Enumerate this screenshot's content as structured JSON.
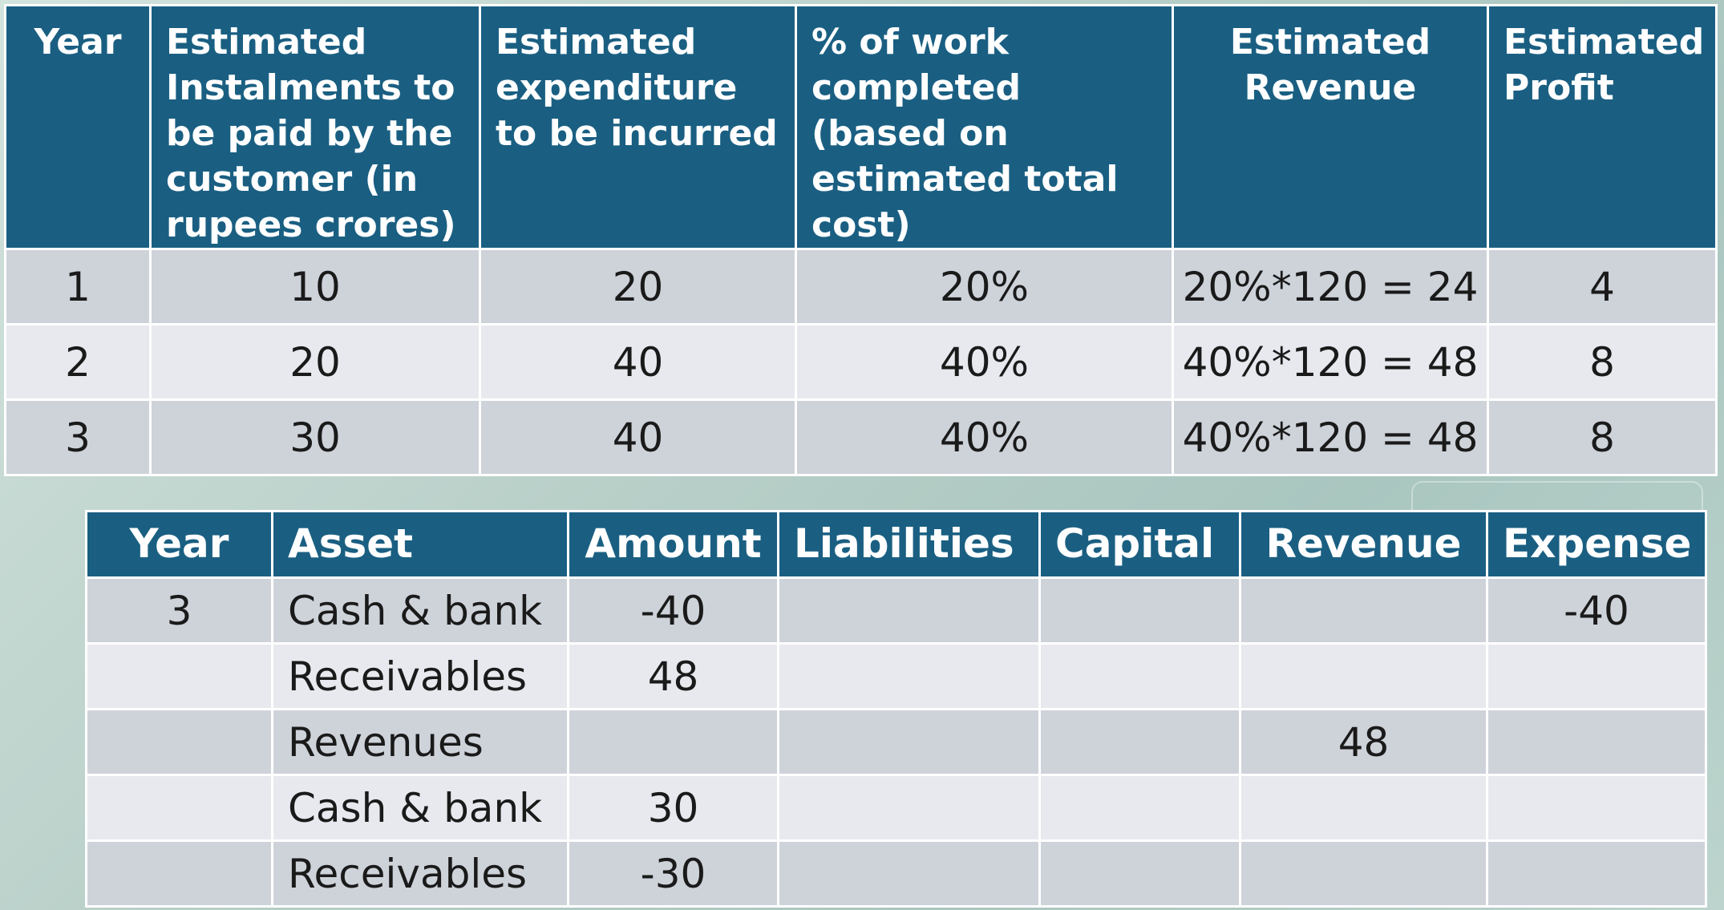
{
  "top_table": {
    "headers": [
      "Year",
      "Estimated Instalments to be  paid by the customer (in rupees crores)",
      "Estimated expenditure to be incurred",
      "% of work completed (based on estimated total cost)",
      "Estimated Revenue",
      "Estimated Profit"
    ],
    "rows": [
      [
        "1",
        "10",
        "20",
        "20%",
        "20%*120 = 24",
        "4"
      ],
      [
        "2",
        "20",
        "40",
        "40%",
        "40%*120 = 48",
        "8"
      ],
      [
        "3",
        "30",
        "40",
        "40%",
        "40%*120 = 48",
        "8"
      ]
    ]
  },
  "bottom_table": {
    "headers": [
      "Year",
      "Asset",
      "Amount",
      "Liabilities",
      "Capital",
      "Revenue",
      "Expense"
    ],
    "rows": [
      [
        "3",
        "Cash & bank",
        "-40",
        "",
        "",
        "",
        "-40"
      ],
      [
        "",
        "Receivables",
        "48",
        "",
        "",
        "",
        ""
      ],
      [
        "",
        "Revenues",
        "",
        "",
        "",
        "48",
        ""
      ],
      [
        "",
        "Cash & bank",
        "30",
        "",
        "",
        "",
        ""
      ],
      [
        "",
        "Receivables",
        "-30",
        "",
        "",
        "",
        ""
      ]
    ]
  }
}
